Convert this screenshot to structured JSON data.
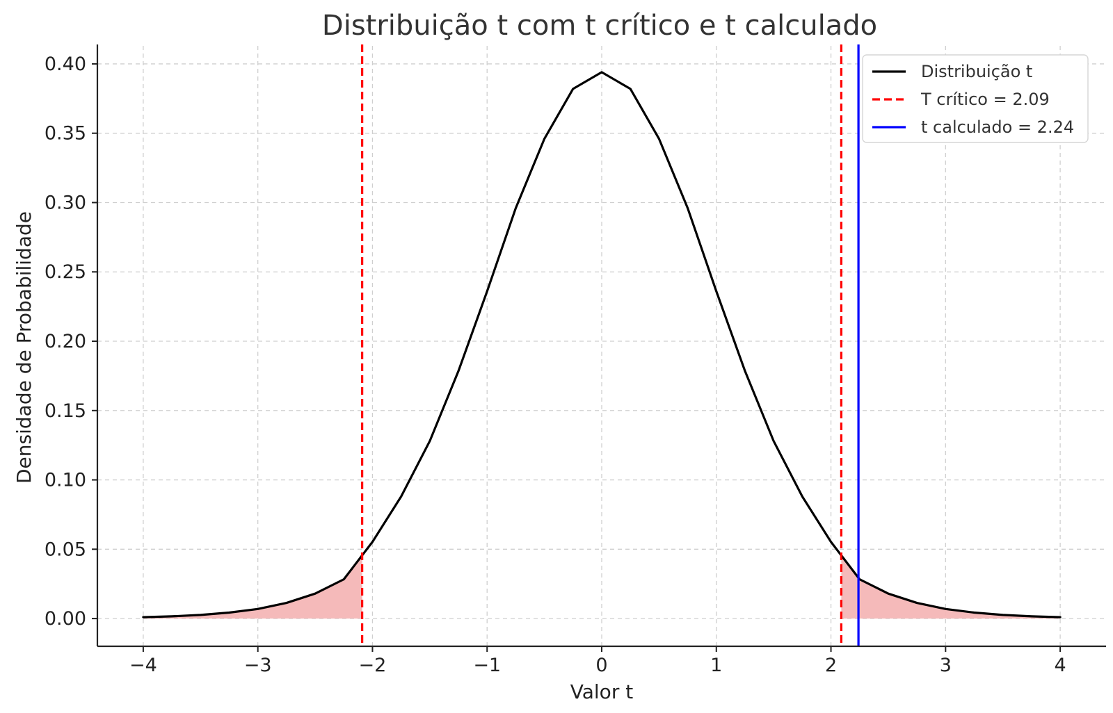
{
  "chart_data": {
    "type": "line",
    "title": "Distribuição t com t crítico e t calculado",
    "xlabel": "Valor t",
    "ylabel": "Densidade de Probabilidade",
    "xlim": [
      -4.4,
      4.4
    ],
    "ylim": [
      -0.02,
      0.413
    ],
    "x_ticks": [
      -4,
      -3,
      -2,
      -1,
      0,
      1,
      2,
      3,
      4
    ],
    "x_tick_labels": [
      "−4",
      "−3",
      "−2",
      "−1",
      "0",
      "1",
      "2",
      "3",
      "4"
    ],
    "y_ticks": [
      0.0,
      0.05,
      0.1,
      0.15,
      0.2,
      0.25,
      0.3,
      0.35,
      0.4
    ],
    "y_tick_labels": [
      "0.00",
      "0.05",
      "0.10",
      "0.15",
      "0.20",
      "0.25",
      "0.30",
      "0.35",
      "0.40"
    ],
    "grid": true,
    "legend_position": "top-right",
    "series": [
      {
        "name": "Distribuição t",
        "color": "#000000",
        "x": [
          -4.0,
          -3.75,
          -3.5,
          -3.25,
          -3.0,
          -2.75,
          -2.5,
          -2.25,
          -2.0,
          -1.75,
          -1.5,
          -1.25,
          -1.0,
          -0.75,
          -0.5,
          -0.25,
          0.0,
          0.25,
          0.5,
          0.75,
          1.0,
          1.25,
          1.5,
          1.75,
          2.0,
          2.25,
          2.5,
          2.75,
          3.0,
          3.25,
          3.5,
          3.75,
          4.0
        ],
        "y": [
          0.001,
          0.0016,
          0.0026,
          0.0043,
          0.0069,
          0.0113,
          0.018,
          0.0283,
          0.0553,
          0.088,
          0.128,
          0.1785,
          0.236,
          0.296,
          0.346,
          0.382,
          0.394,
          0.382,
          0.346,
          0.296,
          0.236,
          0.1785,
          0.128,
          0.088,
          0.0553,
          0.0283,
          0.018,
          0.0113,
          0.0069,
          0.0043,
          0.0026,
          0.0016,
          0.001
        ]
      }
    ],
    "vertical_lines": [
      {
        "x": -2.09,
        "color": "#ff0000",
        "style": "dashed"
      },
      {
        "x": 2.09,
        "color": "#ff0000",
        "style": "dashed",
        "legend": "T crítico = 2.09"
      },
      {
        "x": 2.24,
        "color": "#0000ff",
        "style": "solid",
        "legend": "t calculado = 2.24"
      }
    ],
    "shaded_regions": [
      {
        "from": -4.0,
        "to": -2.09,
        "color": "#f4b6b6"
      },
      {
        "from": 2.09,
        "to": 4.0,
        "color": "#f4b6b6"
      }
    ],
    "legend": [
      {
        "label": "Distribuição t",
        "color": "#000000",
        "style": "solid"
      },
      {
        "label": "T crítico = 2.09",
        "color": "#ff0000",
        "style": "dashed"
      },
      {
        "label": "t calculado = 2.24",
        "color": "#0000ff",
        "style": "solid"
      }
    ]
  }
}
